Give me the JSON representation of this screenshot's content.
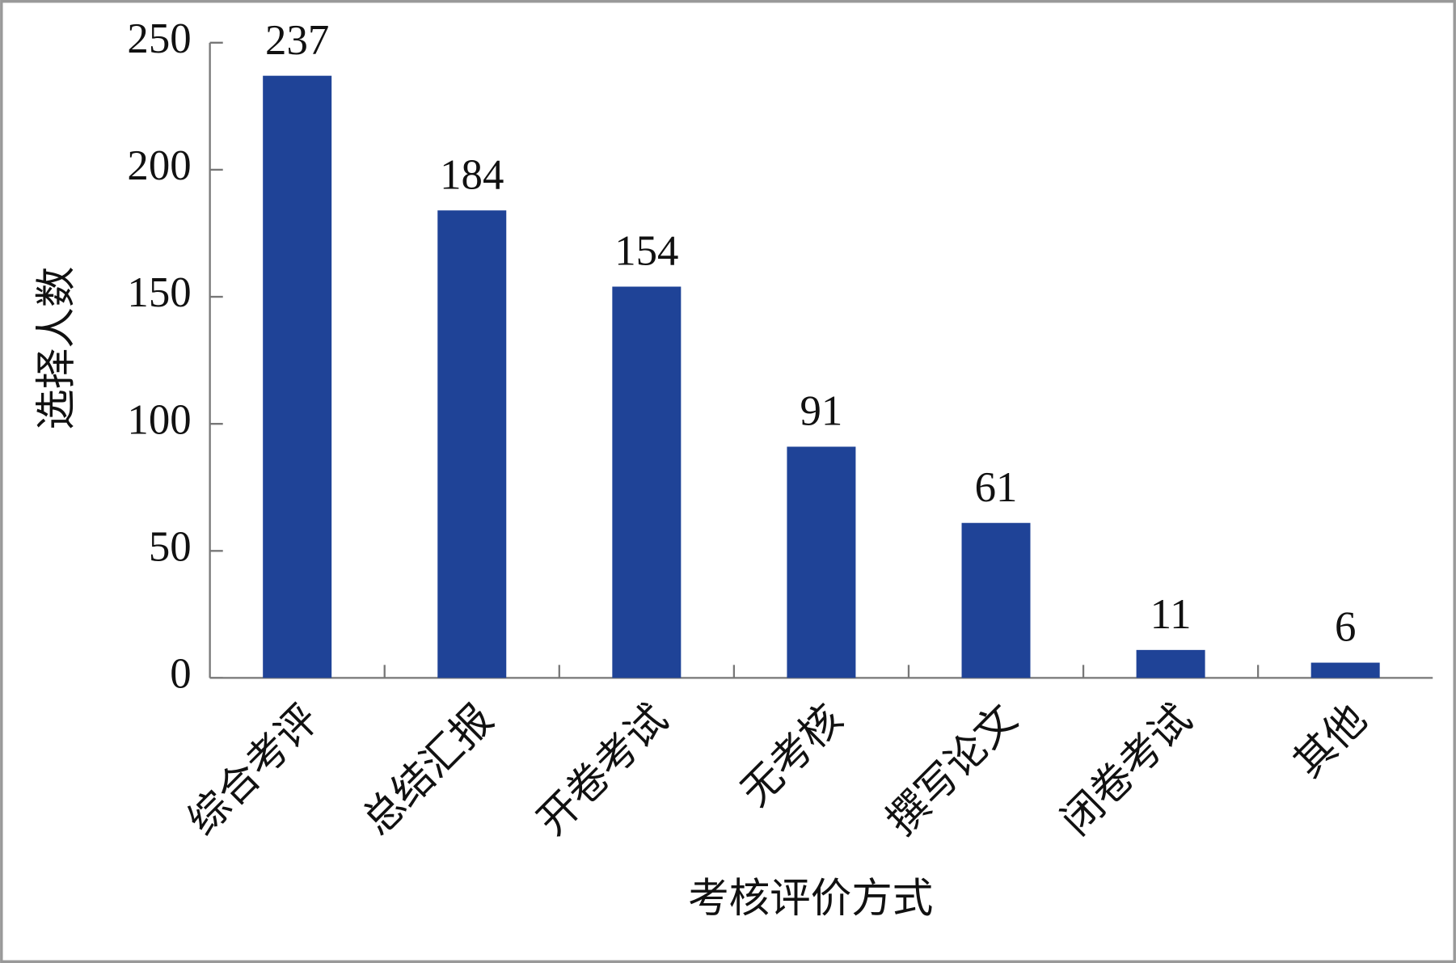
{
  "chart_data": {
    "type": "bar",
    "categories": [
      "综合考评",
      "总结汇报",
      "开卷考试",
      "无考核",
      "撰写论文",
      "闭卷考试",
      "其他"
    ],
    "values": [
      237,
      184,
      154,
      91,
      61,
      11,
      6
    ],
    "color": "#1f4397",
    "x_label": "考核评价方式",
    "y_label": "选择人数",
    "ylim": [
      0,
      250
    ],
    "yticks": [
      0,
      50,
      100,
      150,
      200,
      250
    ],
    "grid": false
  }
}
